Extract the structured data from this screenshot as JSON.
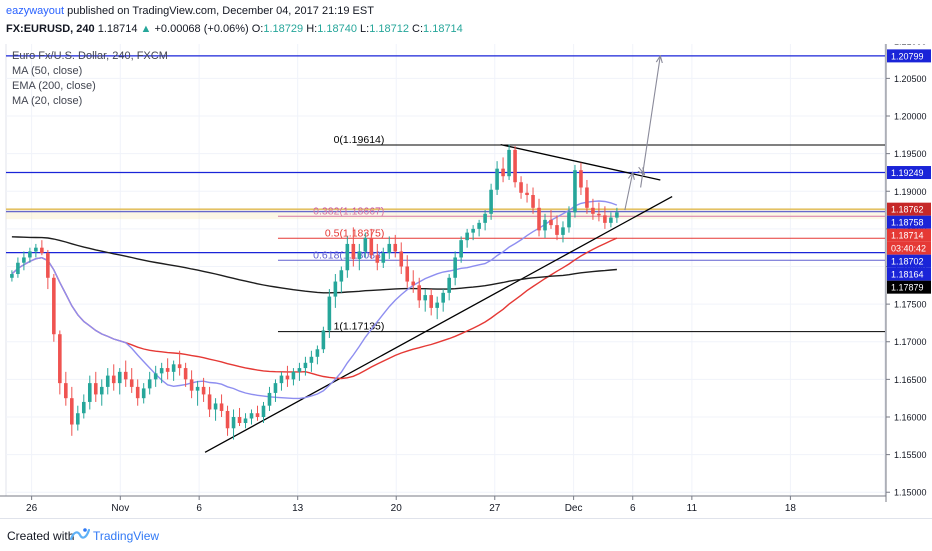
{
  "header": {
    "author": "eazywayout",
    "published_text": "published on TradingView.com, December 04, 2017 21:19 EST",
    "symbol_tf": "FX:EURUSD, 240",
    "last": "1.18714",
    "change_arrow": "▲",
    "change": "+0.00068 (+0.06%)",
    "o_label": "O:",
    "o_val": "1.18729",
    "h_label": "H:",
    "h_val": "1.18740",
    "l_label": "L:",
    "l_val": "1.18712",
    "c_label": "C:",
    "c_val": "1.18714"
  },
  "legend": {
    "title": "Euro Fx/U.S. Dollar, 240, FXCM",
    "studies": [
      "MA (50, close)",
      "EMA (200, close)",
      "MA (20, close)"
    ]
  },
  "footer": {
    "created_with": "Created with",
    "brand": "TradingView"
  },
  "chart_data": {
    "type": "candlestick",
    "symbol": "EURUSD",
    "timeframe": "240",
    "colors": {
      "up": "#26a69a",
      "down": "#ef5350",
      "ma50": "#e53935",
      "ema200": "#1e1e1e",
      "ma20": "#8e8ef0",
      "blue_line": "#1a24d8",
      "fib": "#e53935",
      "trend": "#000000"
    },
    "yaxis": {
      "ylim": [
        1.1495,
        1.2105
      ],
      "ticks": [
        "1.15000",
        "1.15500",
        "1.16000",
        "1.16500",
        "1.17000",
        "1.17500",
        "1.18000",
        "1.18500",
        "1.19000",
        "1.19500",
        "1.20000",
        "1.20500",
        "1.21000"
      ]
    },
    "xaxis": {
      "ticks": [
        {
          "label": "26",
          "x": 0.5
        },
        {
          "label": "Nov",
          "x": 5
        },
        {
          "label": "6",
          "x": 9
        },
        {
          "label": "13",
          "x": 14
        },
        {
          "label": "20",
          "x": 19
        },
        {
          "label": "27",
          "x": 24
        },
        {
          "label": "Dec",
          "x": 28
        },
        {
          "label": "6",
          "x": 31
        },
        {
          "label": "11",
          "x": 34
        },
        {
          "label": "18",
          "x": 39
        }
      ],
      "xlim": [
        -0.8,
        43.8
      ]
    },
    "candles_ohlc": [
      [
        1.1785,
        1.1795,
        1.178,
        1.179
      ],
      [
        1.179,
        1.1812,
        1.1785,
        1.1805
      ],
      [
        1.1805,
        1.182,
        1.1795,
        1.1812
      ],
      [
        1.1812,
        1.1825,
        1.1805,
        1.182
      ],
      [
        1.182,
        1.183,
        1.1812,
        1.1825
      ],
      [
        1.1825,
        1.1835,
        1.1815,
        1.1818
      ],
      [
        1.1818,
        1.1822,
        1.177,
        1.1785
      ],
      [
        1.1785,
        1.179,
        1.17,
        1.171
      ],
      [
        1.171,
        1.1715,
        1.163,
        1.1645
      ],
      [
        1.1645,
        1.166,
        1.1615,
        1.1625
      ],
      [
        1.1625,
        1.164,
        1.1575,
        1.159
      ],
      [
        1.159,
        1.1615,
        1.1582,
        1.1605
      ],
      [
        1.1605,
        1.163,
        1.1598,
        1.162
      ],
      [
        1.162,
        1.1655,
        1.161,
        1.1645
      ],
      [
        1.1645,
        1.166,
        1.162,
        1.163
      ],
      [
        1.163,
        1.165,
        1.1615,
        1.164
      ],
      [
        1.164,
        1.1665,
        1.163,
        1.1655
      ],
      [
        1.1655,
        1.167,
        1.1635,
        1.1645
      ],
      [
        1.1645,
        1.1665,
        1.163,
        1.166
      ],
      [
        1.166,
        1.1675,
        1.164,
        1.165
      ],
      [
        1.165,
        1.1665,
        1.1632,
        1.164
      ],
      [
        1.164,
        1.165,
        1.1615,
        1.1625
      ],
      [
        1.1625,
        1.1645,
        1.1618,
        1.1638
      ],
      [
        1.1638,
        1.166,
        1.163,
        1.165
      ],
      [
        1.165,
        1.1668,
        1.164,
        1.1658
      ],
      [
        1.1658,
        1.1672,
        1.1645,
        1.1665
      ],
      [
        1.1665,
        1.1678,
        1.165,
        1.166
      ],
      [
        1.166,
        1.1675,
        1.1648,
        1.167
      ],
      [
        1.167,
        1.1688,
        1.1655,
        1.1665
      ],
      [
        1.1665,
        1.1672,
        1.164,
        1.165
      ],
      [
        1.165,
        1.1662,
        1.1625,
        1.1635
      ],
      [
        1.1635,
        1.1648,
        1.1615,
        1.164
      ],
      [
        1.164,
        1.1652,
        1.162,
        1.163
      ],
      [
        1.163,
        1.164,
        1.16,
        1.161
      ],
      [
        1.161,
        1.1625,
        1.1595,
        1.1618
      ],
      [
        1.1618,
        1.163,
        1.16,
        1.1608
      ],
      [
        1.1608,
        1.1615,
        1.1575,
        1.1585
      ],
      [
        1.1585,
        1.161,
        1.157,
        1.16
      ],
      [
        1.16,
        1.1612,
        1.1588,
        1.1592
      ],
      [
        1.1592,
        1.1605,
        1.1585,
        1.1598
      ],
      [
        1.1598,
        1.161,
        1.159,
        1.1605
      ],
      [
        1.1605,
        1.1615,
        1.1595,
        1.16
      ],
      [
        1.16,
        1.162,
        1.1592,
        1.1615
      ],
      [
        1.1615,
        1.164,
        1.1608,
        1.1632
      ],
      [
        1.1632,
        1.165,
        1.162,
        1.1645
      ],
      [
        1.1645,
        1.166,
        1.1635,
        1.1655
      ],
      [
        1.1655,
        1.1668,
        1.164,
        1.165
      ],
      [
        1.165,
        1.1665,
        1.1642,
        1.166
      ],
      [
        1.166,
        1.1672,
        1.1648,
        1.1665
      ],
      [
        1.1665,
        1.168,
        1.1655,
        1.1672
      ],
      [
        1.1672,
        1.1688,
        1.166,
        1.168
      ],
      [
        1.168,
        1.1695,
        1.167,
        1.169
      ],
      [
        1.169,
        1.172,
        1.1685,
        1.1715
      ],
      [
        1.1715,
        1.177,
        1.1705,
        1.176
      ],
      [
        1.176,
        1.179,
        1.1745,
        1.178
      ],
      [
        1.178,
        1.18,
        1.1765,
        1.1795
      ],
      [
        1.1795,
        1.184,
        1.1785,
        1.183
      ],
      [
        1.183,
        1.1852,
        1.18,
        1.181
      ],
      [
        1.181,
        1.183,
        1.1795,
        1.182
      ],
      [
        1.182,
        1.1845,
        1.1812,
        1.1838
      ],
      [
        1.1838,
        1.185,
        1.181,
        1.1815
      ],
      [
        1.1815,
        1.183,
        1.1795,
        1.1805
      ],
      [
        1.1805,
        1.1825,
        1.1798,
        1.1818
      ],
      [
        1.1818,
        1.184,
        1.181,
        1.183
      ],
      [
        1.183,
        1.1842,
        1.1812,
        1.182
      ],
      [
        1.182,
        1.1832,
        1.179,
        1.18
      ],
      [
        1.18,
        1.1815,
        1.1772,
        1.178
      ],
      [
        1.178,
        1.1795,
        1.1765,
        1.1775
      ],
      [
        1.1775,
        1.1785,
        1.1745,
        1.1755
      ],
      [
        1.1755,
        1.177,
        1.174,
        1.1762
      ],
      [
        1.1762,
        1.177,
        1.1735,
        1.1745
      ],
      [
        1.1745,
        1.176,
        1.173,
        1.1752
      ],
      [
        1.1752,
        1.177,
        1.174,
        1.1765
      ],
      [
        1.1765,
        1.179,
        1.1755,
        1.1785
      ],
      [
        1.1785,
        1.182,
        1.1775,
        1.1812
      ],
      [
        1.1812,
        1.184,
        1.1805,
        1.1835
      ],
      [
        1.1835,
        1.185,
        1.1825,
        1.1845
      ],
      [
        1.1845,
        1.1855,
        1.1835,
        1.185
      ],
      [
        1.185,
        1.1862,
        1.184,
        1.1858
      ],
      [
        1.1858,
        1.1875,
        1.1848,
        1.187
      ],
      [
        1.187,
        1.191,
        1.1862,
        1.1902
      ],
      [
        1.1902,
        1.194,
        1.1895,
        1.193
      ],
      [
        1.193,
        1.1945,
        1.1912,
        1.192
      ],
      [
        1.192,
        1.1962,
        1.1915,
        1.1955
      ],
      [
        1.1955,
        1.196,
        1.1905,
        1.1912
      ],
      [
        1.1912,
        1.192,
        1.189,
        1.1898
      ],
      [
        1.1898,
        1.191,
        1.1885,
        1.1895
      ],
      [
        1.1895,
        1.1905,
        1.187,
        1.1878
      ],
      [
        1.1878,
        1.189,
        1.184,
        1.1848
      ],
      [
        1.1848,
        1.187,
        1.1838,
        1.1862
      ],
      [
        1.1862,
        1.1875,
        1.185,
        1.1855
      ],
      [
        1.1855,
        1.1868,
        1.1835,
        1.1842
      ],
      [
        1.1842,
        1.186,
        1.1832,
        1.1852
      ],
      [
        1.1852,
        1.188,
        1.1845,
        1.1872
      ],
      [
        1.1872,
        1.1935,
        1.1865,
        1.1928
      ],
      [
        1.1928,
        1.1938,
        1.1895,
        1.1905
      ],
      [
        1.1905,
        1.1915,
        1.187,
        1.1878
      ],
      [
        1.1878,
        1.189,
        1.1862,
        1.187
      ],
      [
        1.187,
        1.1885,
        1.186,
        1.1868
      ],
      [
        1.1868,
        1.188,
        1.185,
        1.1858
      ],
      [
        1.1858,
        1.1872,
        1.1852,
        1.1865
      ],
      [
        1.1865,
        1.1878,
        1.1858,
        1.1872
      ]
    ],
    "horizontal_lines": [
      {
        "y": 1.20799,
        "color": "#1a24d8",
        "label": "1.20799"
      },
      {
        "y": 1.19249,
        "color": "#1a24d8",
        "label": "1.19249"
      },
      {
        "y": 1.18762,
        "color": "#d4a017",
        "label": ""
      },
      {
        "y": 1.1873,
        "color": "#1a24d8",
        "label": ""
      },
      {
        "y": 1.18184,
        "color": "#1a24d8",
        "label": ""
      }
    ],
    "fib_levels": [
      {
        "level": "0",
        "value": 1.19614,
        "text": "0(1.19614)",
        "color": "#000000"
      },
      {
        "level": "0.382",
        "value": 1.18667,
        "text": "0.382(1.18667)",
        "color": "#c53b9a"
      },
      {
        "level": "0.5",
        "value": 1.18375,
        "text": "0.5(1.18375)",
        "color": "#e53935"
      },
      {
        "level": "0.618",
        "value": 1.18083,
        "text": "0.618(1.18083)",
        "color": "#6060d0"
      },
      {
        "level": "1",
        "value": 1.17135,
        "text": "1(1.17135)",
        "color": "#000000"
      }
    ],
    "price_labels": [
      {
        "text": "1.20799",
        "y": 1.20799,
        "bg": "#1a24d8",
        "fg": "#ffffff"
      },
      {
        "text": "1.19249",
        "y": 1.19249,
        "bg": "#1a24d8",
        "fg": "#ffffff"
      },
      {
        "text": "1.18762",
        "y": 1.18762,
        "bg": "#c62828",
        "fg": "#ffffff"
      },
      {
        "text": "1.18758",
        "y": 1.18758,
        "bg": "#1a24d8",
        "fg": "#ffffff"
      },
      {
        "text": "1.18714",
        "y": 1.18714,
        "bg": "#e53935",
        "fg": "#ffffff"
      },
      {
        "text": "03:40:42",
        "y": 1.18714,
        "bg": "#e53935",
        "fg": "#ffffff"
      },
      {
        "text": "1.18702",
        "y": 1.18702,
        "bg": "#1a24d8",
        "fg": "#ffffff"
      },
      {
        "text": "1.18164",
        "y": 1.18164,
        "bg": "#1a24d8",
        "fg": "#ffffff"
      },
      {
        "text": "1.17879",
        "y": 1.17879,
        "bg": "#000000",
        "fg": "#ffffff"
      }
    ],
    "trend_lines": [
      {
        "from": [
          9.3,
          1.1553
        ],
        "to": [
          33.0,
          1.1893
        ],
        "color": "#000000"
      },
      {
        "from": [
          24.3,
          1.1962
        ],
        "to": [
          32.4,
          1.1915
        ],
        "color": "#000000"
      }
    ],
    "projection_arrows": [
      {
        "from": [
          30.6,
          1.1875
        ],
        "to": [
          31.0,
          1.1925
        ]
      },
      {
        "from": [
          31.4,
          1.1905
        ],
        "to": [
          32.4,
          1.208
        ]
      },
      {
        "from": [
          31.3,
          1.1932
        ],
        "to": [
          31.6,
          1.1922
        ]
      }
    ]
  }
}
